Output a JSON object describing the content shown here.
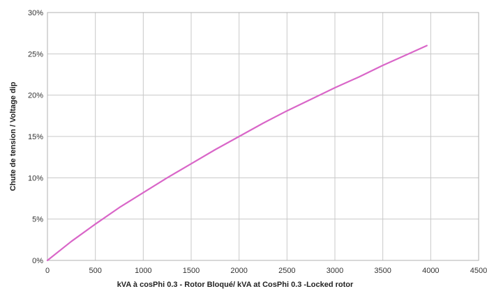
{
  "chart_data": {
    "type": "line",
    "title": "",
    "xlabel": "kVA à cosPhi 0.3 - Rotor Bloqué/ kVA at CosPhi 0.3 -Locked rotor",
    "ylabel": "Chute de tension / Voltage dip",
    "xlim": [
      0,
      4500
    ],
    "ylim": [
      0,
      30
    ],
    "x_ticks": [
      0,
      500,
      1000,
      1500,
      2000,
      2500,
      3000,
      3500,
      4000,
      4500
    ],
    "x_tick_labels": [
      "0",
      "500",
      "1000",
      "1500",
      "2000",
      "2500",
      "3000",
      "3500",
      "4000",
      "4500"
    ],
    "y_ticks": [
      0,
      5,
      10,
      15,
      20,
      25,
      30
    ],
    "y_tick_labels": [
      "0%",
      "5%",
      "10%",
      "15%",
      "20%",
      "25%",
      "30%"
    ],
    "grid": true,
    "legend": "none",
    "series": [
      {
        "color": "#d966c8",
        "x": [
          0,
          250,
          500,
          750,
          1000,
          1250,
          1500,
          1750,
          2000,
          2250,
          2500,
          2750,
          3000,
          3250,
          3500,
          3750,
          3960
        ],
        "y": [
          0,
          2.3,
          4.4,
          6.4,
          8.2,
          10.0,
          11.7,
          13.4,
          15.0,
          16.6,
          18.1,
          19.5,
          20.9,
          22.2,
          23.6,
          24.9,
          26.0
        ]
      }
    ]
  }
}
